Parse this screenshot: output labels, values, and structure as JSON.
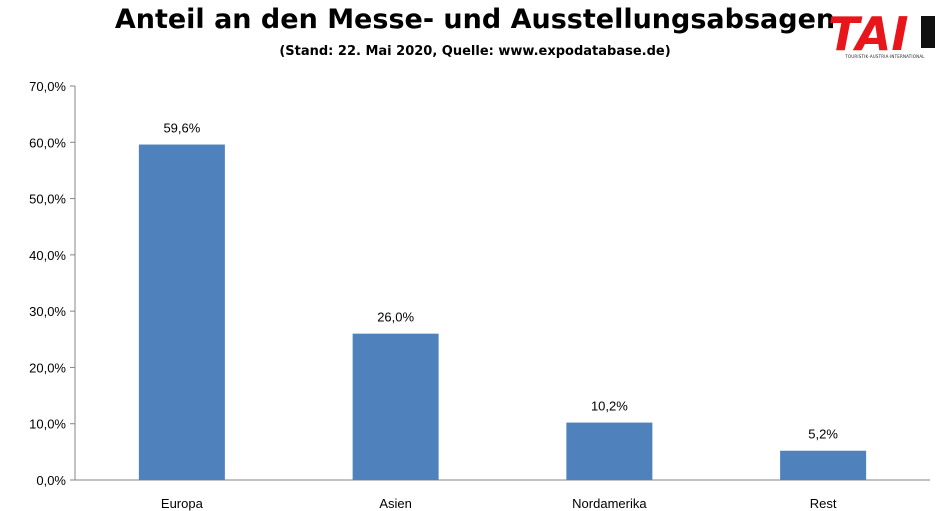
{
  "header": {
    "title": "Anteil an den Messe- und Ausstellungsabsagen",
    "subtitle": "(Stand: 22. Mai 2020, Quelle:  www.expodatabase.de)"
  },
  "logo": {
    "text": "TAI",
    "subtext": "TOURISTIK·AUSTRIA·INTERNATIONAL",
    "colors": {
      "primary": "#e8151b",
      "accent": "#111111"
    }
  },
  "chart_data": {
    "type": "bar",
    "categories": [
      "Europa",
      "Asien",
      "Nordamerika",
      "Rest"
    ],
    "values": [
      59.6,
      26.0,
      10.2,
      5.2
    ],
    "data_labels": [
      "59,6%",
      "26,0%",
      "10,2%",
      "5,2%"
    ],
    "title": "Anteil an den Messe- und Ausstellungsabsagen",
    "subtitle": "(Stand: 22. Mai 2020, Quelle:  www.expodatabase.de)",
    "xlabel": "",
    "ylabel": "",
    "ylim": [
      0,
      70
    ],
    "yticks": [
      0,
      10,
      20,
      30,
      40,
      50,
      60,
      70
    ],
    "ytick_labels": [
      "0,0%",
      "10,0%",
      "20,0%",
      "30,0%",
      "40,0%",
      "50,0%",
      "60,0%",
      "70,0%"
    ],
    "grid": false,
    "legend": "none",
    "bar_color": "#4f81bd",
    "axis_color": "#868686"
  }
}
